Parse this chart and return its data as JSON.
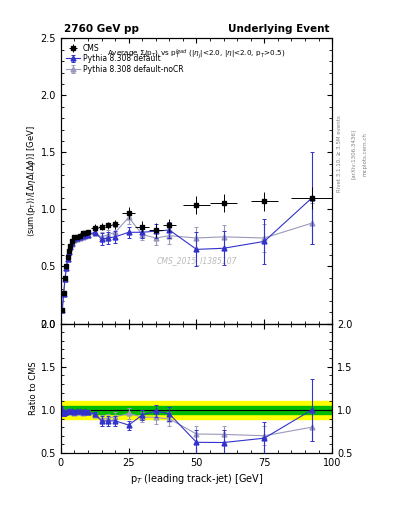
{
  "title_left": "2760 GeV pp",
  "title_right": "Underlying Event",
  "watermark": "CMS_2015_I1385107",
  "rivet_label": "Rivet 3.1.10, ≥ 3.5M events",
  "arxiv_label": "[arXiv:1306.3436]",
  "mcplots_label": "mcplots.cern.ch",
  "xlim": [
    0,
    100
  ],
  "ylim_main": [
    0,
    2.5
  ],
  "ylim_ratio": [
    0.5,
    2.0
  ],
  "cms_x": [
    0.5,
    1.0,
    1.5,
    2.0,
    2.5,
    3.0,
    3.5,
    4.0,
    5.0,
    6.0,
    7.0,
    8.0,
    9.0,
    10.0,
    12.5,
    15.0,
    17.5,
    20.0,
    25.0,
    30.0,
    35.0,
    40.0,
    50.0,
    60.0,
    75.0,
    92.5
  ],
  "cms_y": [
    0.12,
    0.27,
    0.4,
    0.5,
    0.58,
    0.64,
    0.68,
    0.72,
    0.76,
    0.76,
    0.77,
    0.79,
    0.79,
    0.8,
    0.84,
    0.85,
    0.86,
    0.87,
    0.97,
    0.85,
    0.82,
    0.86,
    1.04,
    1.06,
    1.07,
    1.1
  ],
  "cms_ex": [
    0.5,
    0.5,
    0.5,
    0.5,
    0.5,
    0.5,
    0.5,
    0.5,
    0.5,
    0.5,
    0.5,
    0.5,
    0.5,
    0.5,
    1.25,
    1.25,
    1.25,
    1.25,
    2.5,
    2.5,
    2.5,
    2.5,
    5.0,
    5.0,
    5.0,
    7.5
  ],
  "cms_ey": [
    0.01,
    0.01,
    0.02,
    0.02,
    0.02,
    0.02,
    0.02,
    0.02,
    0.02,
    0.02,
    0.02,
    0.02,
    0.02,
    0.02,
    0.03,
    0.03,
    0.03,
    0.04,
    0.05,
    0.05,
    0.06,
    0.06,
    0.08,
    0.08,
    0.08,
    0.1
  ],
  "py_def_x": [
    0.5,
    1.0,
    1.5,
    2.0,
    2.5,
    3.0,
    3.5,
    4.0,
    5.0,
    6.0,
    7.0,
    8.0,
    9.0,
    10.0,
    12.5,
    15.0,
    17.5,
    20.0,
    25.0,
    30.0,
    35.0,
    40.0,
    50.0,
    60.0,
    75.0,
    92.5
  ],
  "py_def_y": [
    0.12,
    0.26,
    0.39,
    0.49,
    0.57,
    0.63,
    0.67,
    0.71,
    0.74,
    0.75,
    0.76,
    0.77,
    0.78,
    0.78,
    0.8,
    0.74,
    0.75,
    0.76,
    0.8,
    0.8,
    0.81,
    0.82,
    0.65,
    0.66,
    0.72,
    1.1
  ],
  "py_def_ey": [
    0.005,
    0.008,
    0.01,
    0.01,
    0.01,
    0.01,
    0.01,
    0.01,
    0.01,
    0.01,
    0.01,
    0.01,
    0.01,
    0.02,
    0.02,
    0.05,
    0.05,
    0.05,
    0.05,
    0.05,
    0.06,
    0.07,
    0.15,
    0.15,
    0.2,
    0.4
  ],
  "py_nocr_x": [
    0.5,
    1.0,
    1.5,
    2.0,
    2.5,
    3.0,
    3.5,
    4.0,
    5.0,
    6.0,
    7.0,
    8.0,
    9.0,
    10.0,
    12.5,
    15.0,
    17.5,
    20.0,
    25.0,
    30.0,
    35.0,
    40.0,
    50.0,
    60.0,
    75.0,
    92.5
  ],
  "py_nocr_y": [
    0.12,
    0.26,
    0.39,
    0.49,
    0.57,
    0.63,
    0.67,
    0.7,
    0.73,
    0.74,
    0.75,
    0.76,
    0.77,
    0.78,
    0.79,
    0.76,
    0.78,
    0.8,
    0.93,
    0.78,
    0.75,
    0.77,
    0.75,
    0.76,
    0.75,
    0.88
  ],
  "py_nocr_ey": [
    0.005,
    0.008,
    0.01,
    0.01,
    0.01,
    0.01,
    0.01,
    0.01,
    0.01,
    0.01,
    0.01,
    0.01,
    0.01,
    0.02,
    0.02,
    0.04,
    0.04,
    0.05,
    0.06,
    0.05,
    0.06,
    0.07,
    0.1,
    0.1,
    0.12,
    0.18
  ],
  "color_cms": "#000000",
  "color_pydef": "#3333cc",
  "color_pynocr": "#9999bb",
  "band_yellow": "#ffff00",
  "band_green": "#00bb00"
}
